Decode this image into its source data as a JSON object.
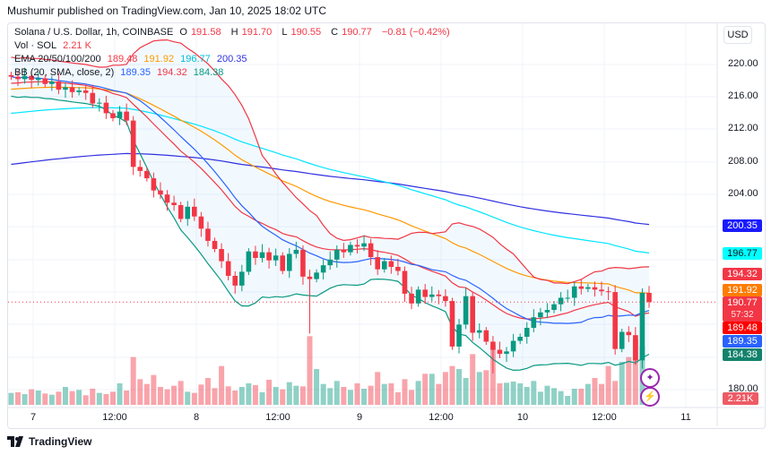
{
  "header": {
    "published": "Mushumir published on TradingView.com, Jan 10, 2025 18:02 UTC"
  },
  "legend": {
    "symbol": "Solana / U.S. Dollar, 1h, COINBASE",
    "o_label": "O",
    "o": "191.58",
    "h_label": "H",
    "h": "191.70",
    "l_label": "L",
    "l": "190.55",
    "c_label": "C",
    "c": "190.77",
    "change": "−0.81 (−0.42%)",
    "vol_label": "Vol · SOL",
    "vol": "2.21 K",
    "ema_label": "EMA 20/50/100/200",
    "ema20": "189.48",
    "ema50": "191.92",
    "ema100": "196.77",
    "ema200": "200.35",
    "bb_label": "BB (20, SMA, close, 2)",
    "bb_basis": "189.35",
    "bb_upper": "194.32",
    "bb_lower": "184.38"
  },
  "currency_button": "USD",
  "price_axis": {
    "ticks": [
      "220.00",
      "216.00",
      "212.00",
      "208.00",
      "204.00",
      "180.00"
    ],
    "badges": {
      "ema200": "200.35",
      "ema100": "196.77",
      "bb_upper": "194.32",
      "ema50": "191.92",
      "last": "190.77",
      "countdown": "57:32",
      "ema20": "189.48",
      "bb_basis": "189.35",
      "bb_lower": "184.38",
      "volume": "2.21K"
    }
  },
  "time_axis": [
    "7",
    "12:00",
    "8",
    "12:00",
    "9",
    "12:00",
    "10",
    "12:00",
    "11"
  ],
  "footer": {
    "brand": "TradingView"
  },
  "colors": {
    "up": "#089981",
    "down": "#f23645",
    "ema20": "#f23645",
    "ema50": "#ff9800",
    "ema100": "#00e5ff",
    "ema200": "#3030e0",
    "bb_basis": "#2962ff",
    "bb_upper": "#f23645",
    "bb_lower": "#089981"
  },
  "chart_data": {
    "type": "candlestick",
    "symbol": "SOLUSD",
    "interval": "1h",
    "ylim": [
      178,
      222
    ],
    "closes": [
      218.5,
      218.2,
      218.6,
      218.1,
      218.3,
      217.6,
      217.9,
      216.9,
      217.2,
      216.6,
      216.8,
      216.5,
      215.2,
      215.3,
      214.0,
      213.4,
      214.2,
      213.1,
      207.4,
      206.9,
      206.0,
      204.5,
      204.0,
      203.0,
      202.7,
      201.0,
      202.5,
      201.3,
      199.8,
      198.3,
      197.3,
      195.8,
      194.0,
      192.8,
      194.5,
      197.0,
      196.2,
      196.9,
      195.9,
      196.5,
      194.6,
      196.7,
      197.2,
      193.9,
      193.6,
      194.4,
      195.3,
      196.0,
      197.2,
      196.9,
      197.8,
      197.6,
      198.0,
      196.3,
      194.8,
      195.8,
      195.1,
      194.6,
      191.8,
      190.6,
      192.3,
      191.4,
      191.7,
      191.5,
      190.9,
      185.3,
      188.0,
      191.5,
      187.0,
      187.3,
      185.9,
      184.9,
      184.4,
      184.7,
      186.0,
      186.5,
      187.6,
      188.9,
      189.5,
      189.8,
      190.5,
      191.3,
      191.3,
      192.7,
      192.4,
      192.6,
      192.3,
      192.1,
      192.0,
      185.0,
      187.1,
      186.7,
      183.6,
      191.9,
      190.77
    ],
    "volumes_k": [
      2.0,
      2.1,
      1.8,
      2.6,
      2.4,
      1.9,
      1.7,
      2.2,
      3.0,
      2.3,
      2.5,
      1.6,
      2.7,
      2.0,
      1.8,
      2.2,
      3.6,
      2.4,
      8.0,
      4.3,
      3.5,
      5.0,
      3.0,
      2.6,
      3.2,
      4.0,
      2.2,
      2.0,
      3.4,
      4.5,
      2.8,
      6.5,
      3.1,
      2.4,
      3.0,
      3.6,
      3.3,
      2.1,
      4.2,
      3.0,
      2.6,
      3.8,
      3.2,
      3.1,
      11.5,
      6.0,
      3.5,
      2.8,
      4.0,
      3.0,
      2.5,
      3.6,
      2.7,
      3.2,
      5.5,
      3.5,
      3.6,
      2.1,
      4.3,
      2.5,
      4.0,
      5.2,
      5.2,
      3.5,
      5.5,
      6.5,
      6.0,
      4.5,
      8.5,
      5.5,
      5.8,
      10.0,
      3.6,
      3.7,
      3.9,
      3.6,
      3.0,
      4.0,
      2.2,
      3.2,
      2.8,
      2.3,
      1.5,
      2.7,
      2.7,
      3.5,
      4.5,
      3.5,
      6.5,
      4.0,
      7.2,
      8.0,
      11.0,
      9.8,
      2.21
    ]
  }
}
